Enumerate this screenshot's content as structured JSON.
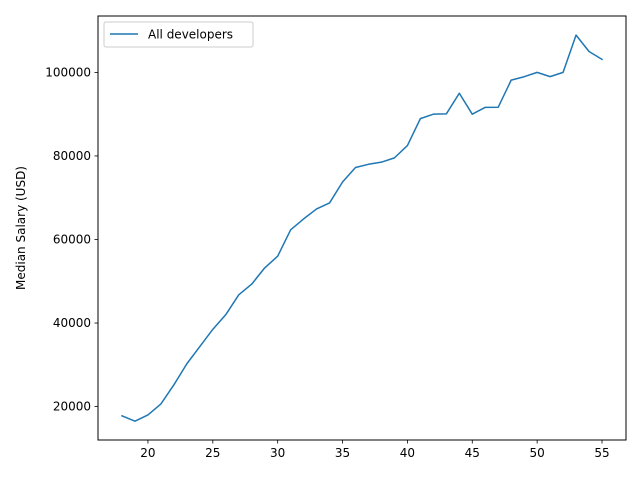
{
  "chart_data": {
    "type": "line",
    "title": "",
    "xlabel": "",
    "ylabel": "Median Salary (USD)",
    "xlim": [
      16.15,
      56.85
    ],
    "ylim": [
      12000,
      113500
    ],
    "x_ticks": [
      20,
      25,
      30,
      35,
      40,
      45,
      50,
      55
    ],
    "y_ticks": [
      20000,
      40000,
      60000,
      80000,
      100000
    ],
    "grid": false,
    "legend_position": "top-left",
    "series": [
      {
        "name": "All developers",
        "color": "#1f77b4",
        "x": [
          18,
          19,
          20,
          21,
          22,
          23,
          24,
          25,
          26,
          27,
          28,
          29,
          30,
          31,
          32,
          33,
          34,
          35,
          36,
          37,
          38,
          39,
          40,
          41,
          42,
          43,
          44,
          45,
          46,
          47,
          48,
          49,
          50,
          51,
          52,
          53,
          54,
          55
        ],
        "y": [
          17784,
          16500,
          18012,
          20628,
          25206,
          30252,
          34368,
          38496,
          42000,
          46752,
          49320,
          53200,
          56000,
          62316,
          64928,
          67317,
          68748,
          73752,
          77232,
          78000,
          78508,
          79536,
          82488,
          88935,
          90000,
          90056,
          95000,
          90000,
          91633,
          91660,
          98150,
          98964,
          100000,
          98988,
          100000,
          108923,
          105000,
          103117
        ]
      }
    ]
  }
}
